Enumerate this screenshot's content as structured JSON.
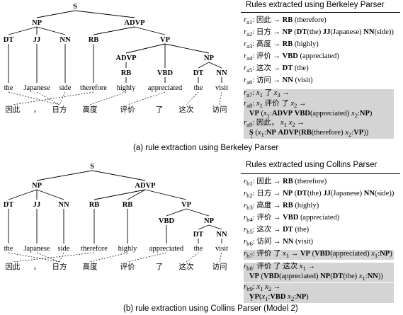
{
  "top": {
    "tree": {
      "nodes": {
        "S": "S",
        "NP": "NP",
        "ADVP": "ADVP",
        "DT": "DT",
        "JJ": "JJ",
        "NN": "NN",
        "RB": "RB",
        "VP": "VP",
        "ADVP2": "ADVP",
        "NP2": "NP",
        "RB2": "RB",
        "VBD": "VBD",
        "DT2": "DT",
        "NN2": "NN"
      },
      "words": [
        "the",
        "Japanese",
        "side",
        "therefore",
        "highly",
        "appreciated",
        "the",
        "visit"
      ],
      "chinese": [
        "因此",
        "，",
        "日方",
        "高度",
        "评价",
        "了",
        "这次",
        "访问"
      ]
    },
    "rules_title": "Rules extracted using Berkeley Parser",
    "rules": [
      {
        "label": "r",
        "sub": "a1",
        "src": "因此",
        "arrow": "→",
        "tgt": "<b>RB</b> (therefore)"
      },
      {
        "label": "r",
        "sub": "a2",
        "src": "日方",
        "arrow": "→",
        "tgt": "<b>NP</b> (<b>DT</b>(the) <b>JJ</b>(Japanese) <b>NN</b>(side))"
      },
      {
        "label": "r",
        "sub": "a3",
        "src": "高度",
        "arrow": "→",
        "tgt": "<b>RB</b> (highly)"
      },
      {
        "label": "r",
        "sub": "a4",
        "src": "评价",
        "arrow": "→",
        "tgt": "<b>VBD</b> (appreciated)"
      },
      {
        "label": "r",
        "sub": "a5",
        "src": "这次",
        "arrow": "→",
        "tgt": "<b>DT</b> (the)"
      },
      {
        "label": "r",
        "sub": "a6",
        "src": "访问",
        "arrow": "→",
        "tgt": "<b>NN</b> (visit)"
      },
      {
        "label": "r",
        "sub": "a7",
        "src": "<i>x</i><sub>1</sub> 了 <i>x</i><sub>3</sub>",
        "arrow": "→",
        "tgt": "<b>VP</b> (<i>x</i><sub>1</sub>:<b>ADVP</b> <i>x</i><sub>2</sub>:<b>VBD</b> <i>x</i><sub>3</sub>:<b>NP</b>)"
      },
      {
        "label": "r",
        "sub": "a8",
        "src": "<i>x</i><sub>1</sub> 评价 了 <i>x</i><sub>2</sub>",
        "arrow": "→",
        "tgt": "<b>VP</b> (<i>x</i><sub>1</sub>:<b>ADVP</b> <b>VBD</b>(appreciated) <i>x</i><sub>2</sub>:<b>NP</b>)"
      },
      {
        "label": "r",
        "sub": "a9",
        "src": "因此， <i>x</i><sub>1</sub> <i>x</i><sub>2</sub>",
        "arrow": "→",
        "tgt": "<b>S</b> (<i>x</i><sub>1</sub>:<b>NP</b> <b>ADVP</b>(<b>RB</b>(therefore) <i>x</i><sub>2</sub>:<b>VP</b>))"
      }
    ],
    "ellipsis": "⋮",
    "caption": "(a) rule extraction using Berkeley Parser"
  },
  "bottom": {
    "tree": {
      "nodes": {
        "S": "S",
        "NP": "NP",
        "ADVP": "ADVP",
        "DT": "DT",
        "JJ": "JJ",
        "NN": "NN",
        "RB": "RB",
        "RB2": "RB",
        "VP": "VP",
        "VBD": "VBD",
        "NP2": "NP",
        "DT2": "DT",
        "NN2": "NN"
      },
      "words": [
        "the",
        "Japanese",
        "side",
        "therefore",
        "highly",
        "appreciated",
        "the",
        "visit"
      ],
      "chinese": [
        "因此",
        "，",
        "日方",
        "高度",
        "评价",
        "了",
        "这次",
        "访问"
      ]
    },
    "rules_title": "Rules extracted using Collins Parser",
    "rules": [
      {
        "label": "r",
        "sub": "b1",
        "src": "因此",
        "arrow": "→",
        "tgt": "<b>RB</b> (therefore)"
      },
      {
        "label": "r",
        "sub": "b2",
        "src": "日方",
        "arrow": "→",
        "tgt": "<b>NP</b> (<b>DT</b>(the) <b>JJ</b>(Japanese) <b>NN</b>(side))"
      },
      {
        "label": "r",
        "sub": "b3",
        "src": "高度",
        "arrow": "→",
        "tgt": "<b>RB</b> (highly)"
      },
      {
        "label": "r",
        "sub": "b4",
        "src": "评价",
        "arrow": "→",
        "tgt": "<b>VBD</b> (appreciated)"
      },
      {
        "label": "r",
        "sub": "b5",
        "src": "这次",
        "arrow": "→",
        "tgt": "<b>DT</b> (the)"
      },
      {
        "label": "r",
        "sub": "b6",
        "src": "访问",
        "arrow": "→",
        "tgt": "<b>NN</b> (visit)"
      },
      {
        "label": "r",
        "sub": "b7",
        "src": "评价 了 <i>x</i><sub>1</sub>",
        "arrow": "→",
        "tgt": "<b>VP</b> (<b>VBD</b>(appreciated) <i>x</i><sub>1</sub>:<b>NP</b>)"
      },
      {
        "label": "r",
        "sub": "b8",
        "src": "评价 了 这次 <i>x</i><sub>1</sub>",
        "arrow": "→",
        "tgt": "<b>VP</b> (<b>VBD</b>(appreciated) <b>NP</b>(<b>DT</b>(the) <i>x</i><sub>1</sub>:<b>NN</b>))"
      },
      {
        "label": "r",
        "sub": "b9",
        "src": "<i>x</i><sub>1</sub> <i>x</i><sub>2</sub>",
        "arrow": "→",
        "tgt": "<b>VP</b>(<i>x</i><sub>1</sub>:<b>VBD</b> <i>x</i><sub>2</sub>:<b>NP</b>)"
      }
    ],
    "ellipsis": "⋮",
    "caption": "(b) rule extraction using Collins Parser (Model 2)"
  }
}
